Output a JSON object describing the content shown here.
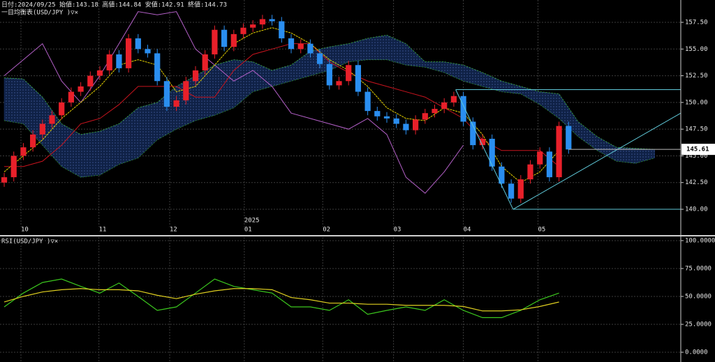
{
  "chart_data": [
    {
      "type": "candlestick",
      "subtitle": "日付:2024/09/25 始値:143.18 高値:144.84 安値:142.91 終値:144.73",
      "title": "一目均衡表(USD/JPY )▽×",
      "year_label": "2025",
      "up_color": "#e8202a",
      "down_color": "#2a8ef0",
      "xlim": [
        -0.44,
        70.73
      ],
      "xticks": [
        {
          "value": 1.75,
          "label": "10"
        },
        {
          "value": 9.9,
          "label": "11"
        },
        {
          "value": 17.3,
          "label": "12"
        },
        {
          "value": 25.1,
          "label": "01"
        },
        {
          "value": 33.3,
          "label": "02"
        },
        {
          "value": 40.7,
          "label": "03"
        },
        {
          "value": 48.0,
          "label": "04"
        },
        {
          "value": 55.8,
          "label": "05"
        }
      ],
      "ylim": [
        138.37,
        159.59
      ],
      "yticks": [
        {
          "value": 140,
          "label": "140.00"
        },
        {
          "value": 142.5,
          "label": "142.50"
        },
        {
          "value": 145,
          "label": "145.00"
        },
        {
          "value": 147.5,
          "label": "147.50"
        },
        {
          "value": 150,
          "label": "150.00"
        },
        {
          "value": 152.5,
          "label": "152.50"
        },
        {
          "value": 155,
          "label": "155.00"
        },
        {
          "value": 157.5,
          "label": "157.50"
        }
      ],
      "grid": true,
      "open": [
        142.5,
        143.0,
        145.0,
        145.8,
        147.0,
        148.0,
        148.8,
        150.0,
        151.0,
        151.5,
        152.5,
        153.0,
        154.5,
        153.2,
        156.0,
        155.0,
        154.6,
        152.0,
        149.6,
        150.2,
        152.0,
        153.0,
        154.5,
        156.8,
        155.2,
        156.4,
        157.0,
        157.3,
        157.8,
        157.6,
        156.0,
        155.0,
        155.5,
        154.6,
        153.6,
        151.6,
        152.0,
        153.5,
        151.0,
        149.2,
        148.7,
        148.5,
        148.0,
        147.4,
        148.4,
        149.0,
        149.4,
        150.0,
        150.6,
        148.2,
        146.0,
        146.6,
        144.0,
        142.4,
        141.0,
        142.8,
        144.2,
        145.4,
        143.0,
        147.8
      ],
      "high": [
        143.4,
        145.4,
        146.2,
        147.4,
        148.4,
        149.2,
        150.4,
        151.4,
        151.9,
        152.9,
        153.4,
        154.9,
        154.9,
        156.4,
        156.4,
        155.4,
        155.0,
        152.4,
        150.6,
        152.4,
        153.4,
        154.9,
        157.2,
        157.2,
        156.8,
        157.4,
        157.7,
        158.2,
        158.2,
        158.0,
        156.4,
        155.9,
        155.9,
        155.0,
        154.0,
        152.4,
        153.9,
        153.9,
        151.4,
        149.6,
        149.1,
        148.9,
        148.4,
        148.8,
        149.4,
        149.8,
        150.4,
        151.0,
        151.0,
        148.6,
        147.0,
        147.0,
        144.4,
        142.8,
        143.2,
        144.6,
        145.8,
        145.8,
        148.2,
        148.2
      ],
      "low": [
        142.1,
        142.6,
        144.6,
        145.4,
        146.6,
        147.6,
        148.4,
        149.6,
        150.6,
        151.1,
        152.1,
        152.6,
        152.8,
        152.8,
        154.6,
        154.2,
        151.6,
        149.2,
        149.2,
        149.8,
        151.6,
        152.6,
        154.1,
        154.8,
        154.8,
        156.0,
        156.6,
        156.9,
        157.2,
        155.6,
        154.6,
        154.6,
        154.2,
        153.2,
        151.2,
        151.2,
        151.6,
        150.6,
        148.8,
        148.3,
        148.1,
        147.6,
        147.0,
        147.0,
        148.0,
        148.6,
        149.0,
        149.6,
        147.8,
        145.6,
        145.6,
        143.6,
        142.0,
        140.6,
        140.6,
        142.4,
        143.8,
        142.6,
        142.6,
        145.2
      ],
      "close": [
        143.0,
        145.0,
        145.8,
        147.0,
        148.0,
        148.8,
        150.0,
        151.0,
        151.5,
        152.5,
        153.0,
        154.5,
        153.2,
        156.0,
        155.0,
        154.6,
        152.0,
        149.6,
        150.2,
        152.0,
        153.0,
        154.5,
        156.8,
        155.2,
        156.4,
        157.0,
        157.3,
        157.8,
        157.6,
        156.0,
        155.0,
        155.5,
        154.6,
        153.6,
        151.6,
        152.0,
        153.5,
        151.0,
        149.2,
        148.7,
        148.5,
        148.0,
        147.4,
        148.4,
        149.0,
        149.4,
        150.0,
        150.6,
        148.2,
        146.0,
        146.6,
        144.0,
        142.4,
        141.0,
        142.8,
        144.2,
        145.4,
        143.0,
        147.8,
        145.6
      ],
      "last_price": 145.61,
      "cloud_color": "#1e3c78",
      "span_a": {
        "color": "#3aa03a",
        "x": [
          0,
          2,
          4,
          6,
          8,
          10,
          12,
          14,
          16,
          18,
          20,
          22,
          24,
          26,
          28,
          30,
          32,
          34,
          36,
          38,
          40,
          42,
          44,
          46,
          48,
          50,
          52,
          54,
          56,
          58,
          60,
          62,
          64,
          66,
          68
        ],
        "values": [
          152.3,
          152.2,
          150.5,
          148.0,
          147.0,
          147.3,
          148.0,
          149.5,
          150.0,
          151.5,
          152.5,
          153.5,
          154.0,
          153.8,
          153.0,
          153.5,
          154.8,
          155.2,
          155.5,
          156.0,
          156.3,
          155.5,
          153.8,
          153.8,
          153.5,
          152.8,
          152.0,
          151.5,
          151.0,
          150.8,
          148.2,
          146.8,
          145.8,
          145.7,
          145.6
        ]
      },
      "span_b": {
        "color": "#2c7a2c",
        "x": [
          0,
          2,
          4,
          6,
          8,
          10,
          12,
          14,
          16,
          18,
          20,
          22,
          24,
          26,
          28,
          30,
          32,
          34,
          36,
          38,
          40,
          42,
          44,
          46,
          48,
          50,
          52,
          54,
          56,
          58,
          60,
          62,
          64,
          66,
          68
        ],
        "values": [
          148.3,
          148.0,
          146.0,
          144.0,
          143.0,
          143.2,
          144.2,
          144.8,
          146.5,
          147.5,
          148.3,
          148.8,
          149.5,
          151.0,
          151.5,
          152.0,
          152.5,
          153.0,
          153.8,
          154.0,
          154.0,
          153.5,
          153.3,
          152.8,
          152.0,
          151.5,
          151.0,
          150.8,
          149.8,
          148.5,
          146.8,
          145.5,
          144.5,
          144.3,
          144.8
        ]
      },
      "tenkan": {
        "color": "#e6d200",
        "x": [
          0,
          2,
          4,
          6,
          8,
          10,
          12,
          14,
          16,
          18,
          20,
          22,
          24,
          26,
          28,
          30,
          32,
          34,
          36,
          38,
          40,
          42,
          44,
          46,
          48,
          50,
          52,
          54,
          56,
          58
        ],
        "values": [
          143.5,
          145.0,
          146.5,
          148.5,
          150.0,
          151.5,
          153.5,
          154.0,
          153.5,
          151.0,
          151.5,
          153.5,
          155.5,
          156.5,
          157.0,
          156.5,
          155.5,
          154.0,
          153.0,
          151.5,
          149.5,
          148.5,
          148.3,
          149.5,
          149.0,
          147.0,
          144.0,
          142.5,
          143.5,
          145.5
        ]
      },
      "kijun": {
        "color": "#c8141e",
        "x": [
          0,
          2,
          4,
          6,
          8,
          10,
          12,
          14,
          16,
          18,
          20,
          22,
          24,
          26,
          28,
          30,
          32,
          34,
          36,
          38,
          40,
          42,
          44,
          46,
          48,
          50,
          52,
          54,
          56,
          58
        ],
        "values": [
          144.0,
          144.0,
          144.5,
          146.0,
          148.0,
          148.5,
          149.8,
          151.5,
          151.5,
          151.5,
          150.5,
          150.5,
          153.0,
          154.5,
          155.0,
          155.5,
          155.5,
          153.8,
          152.8,
          152.0,
          151.5,
          151.0,
          150.5,
          149.5,
          148.5,
          146.5,
          145.5,
          145.5,
          145.5,
          144.0
        ]
      },
      "chikou": {
        "color": "#b460c8",
        "x": [
          0,
          2,
          4,
          6,
          8,
          10,
          12,
          14,
          16,
          18,
          20,
          22,
          24,
          26,
          28,
          30,
          32,
          34,
          36,
          38,
          40,
          42,
          44,
          46,
          48
        ],
        "values": [
          152.5,
          154.0,
          155.5,
          152.0,
          150.0,
          152.5,
          155.5,
          158.5,
          158.2,
          158.5,
          155.0,
          153.5,
          152.0,
          153.0,
          151.5,
          149.0,
          148.5,
          148.0,
          147.5,
          148.5,
          147.0,
          143.0,
          141.5,
          143.5,
          146.0
        ]
      },
      "trendline_color": "#5fc8d8",
      "trendlines": [
        {
          "x": [
            47.2,
            70.73
          ],
          "y": [
            151.2,
            151.2
          ]
        },
        {
          "x": [
            47.2,
            53.2
          ],
          "y": [
            151.2,
            140.0
          ]
        },
        {
          "x": [
            53.2,
            70.73
          ],
          "y": [
            140.0,
            140.0
          ]
        },
        {
          "x": [
            53.2,
            70.73
          ],
          "y": [
            140.0,
            149.0
          ]
        }
      ]
    },
    {
      "type": "line",
      "title": "RSI(USD/JPY )▽×",
      "xlim": [
        -0.44,
        70.73
      ],
      "ylim": [
        -8.75,
        103.1
      ],
      "yticks": [
        {
          "value": 0,
          "label": "0.0000"
        },
        {
          "value": 25,
          "label": "25.0000"
        },
        {
          "value": 50,
          "label": "50.0000"
        },
        {
          "value": 75,
          "label": "75.0000"
        },
        {
          "value": 100,
          "label": "100.0000"
        }
      ],
      "grid": true,
      "series": [
        {
          "color": "#3cc81e",
          "x": [
            0,
            2,
            4,
            6,
            8,
            10,
            12,
            14,
            16,
            18,
            20,
            22,
            24,
            26,
            28,
            30,
            32,
            34,
            36,
            38,
            40,
            42,
            44,
            46,
            48,
            50,
            52,
            54,
            56,
            58
          ],
          "values": [
            40.6,
            53,
            62.5,
            65.6,
            59,
            53,
            62,
            50,
            37.5,
            40.6,
            53,
            65.6,
            59,
            56,
            53,
            40.6,
            40.6,
            37.5,
            47,
            34,
            37.5,
            40.6,
            37.5,
            47,
            37.5,
            31,
            31,
            37.5,
            47,
            53
          ]
        },
        {
          "color": "#e0d020",
          "x": [
            0,
            2,
            4,
            6,
            8,
            10,
            12,
            14,
            16,
            18,
            20,
            22,
            24,
            26,
            28,
            30,
            32,
            34,
            36,
            38,
            40,
            42,
            44,
            46,
            48,
            50,
            52,
            54,
            56,
            58
          ],
          "values": [
            45,
            50,
            54,
            56,
            57,
            56,
            56,
            55,
            51,
            48,
            52,
            55,
            57,
            57,
            56,
            49,
            47,
            44,
            44,
            43,
            43,
            42,
            42,
            42,
            41,
            37,
            37,
            38,
            41,
            45
          ]
        }
      ]
    }
  ]
}
